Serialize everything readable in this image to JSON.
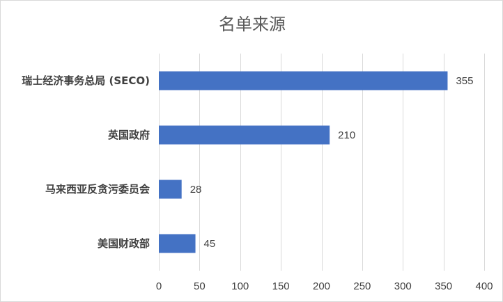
{
  "chart_data": {
    "type": "bar",
    "orientation": "horizontal",
    "title": "名单来源",
    "categories": [
      "瑞士经济事务总局 (SECO)",
      "英国政府",
      "马来西亚反贪污委员会",
      "美国财政部"
    ],
    "values": [
      355,
      210,
      28,
      45
    ],
    "xlim": [
      0,
      400
    ],
    "xticks": [
      0,
      50,
      100,
      150,
      200,
      250,
      300,
      350,
      400
    ],
    "xlabel": "",
    "ylabel": "",
    "grid": true,
    "legend": "none",
    "data_labels": true,
    "bar_color": "#4472c4"
  }
}
